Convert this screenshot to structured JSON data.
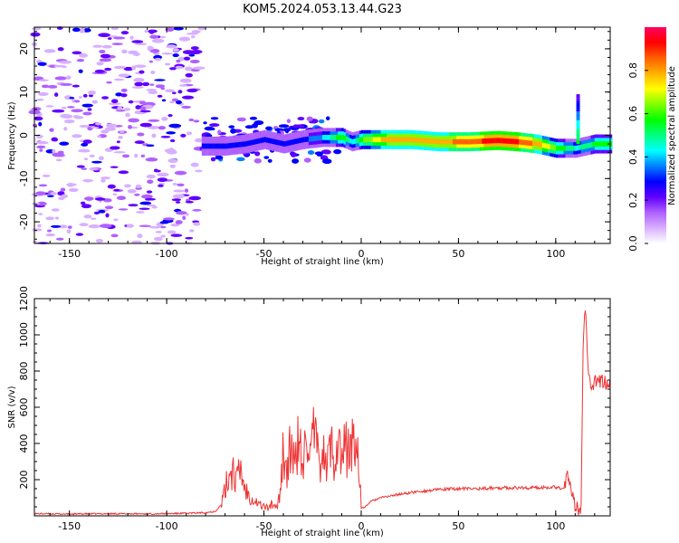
{
  "title": "KOM5.2024.053.13.44.G23",
  "chart_data": [
    {
      "type": "heatmap",
      "xlabel": "Height of straight line (km)",
      "ylabel": "Frequency (Hz)",
      "xlim": [
        -168,
        128
      ],
      "ylim": [
        -25,
        25
      ],
      "x_ticks": [
        -150,
        -100,
        -50,
        0,
        50,
        100
      ],
      "y_ticks": [
        -20,
        -10,
        0,
        10,
        20
      ],
      "grid": false,
      "colorbar": {
        "label": "Normalized spectral amplitude",
        "range": [
          0,
          1
        ],
        "ticks": [
          "0.0",
          "0.2",
          "0.4",
          "0.6",
          "0.8"
        ],
        "colors": [
          "#ffffff",
          "#d8b0ff",
          "#b060ff",
          "#6000ff",
          "#0000ff",
          "#0080ff",
          "#00ffff",
          "#00ff80",
          "#00ff00",
          "#80ff00",
          "#ffff00",
          "#ffb000",
          "#ff6000",
          "#ff0000",
          "#ff0060"
        ]
      },
      "trace": {
        "x": [
          -82,
          -70,
          -60,
          -50,
          -40,
          -30,
          -20,
          -10,
          -5,
          0,
          10,
          25,
          40,
          55,
          70,
          80,
          90,
          100,
          110,
          120,
          128
        ],
        "freq": [
          -2.5,
          -2.5,
          -2.0,
          -1.0,
          -2.0,
          -1.0,
          -0.5,
          -0.5,
          -1.5,
          -1.0,
          -1.0,
          -1.0,
          -1.5,
          -1.5,
          -1.2,
          -1.5,
          -2.0,
          -3.0,
          -3.0,
          -2.0,
          -2.0
        ],
        "amplitude": [
          0.25,
          0.3,
          0.3,
          0.25,
          0.3,
          0.3,
          0.4,
          0.6,
          0.4,
          0.6,
          0.75,
          0.8,
          0.8,
          0.85,
          0.95,
          0.9,
          0.8,
          0.6,
          0.45,
          0.55,
          0.55
        ]
      }
    },
    {
      "type": "line",
      "xlabel": "Height of straight line (km)",
      "ylabel": "SNR (v/v)",
      "xlim": [
        -168,
        128
      ],
      "ylim": [
        0,
        1200
      ],
      "x_ticks": [
        -150,
        -100,
        -50,
        0,
        50,
        100
      ],
      "y_ticks": [
        200,
        400,
        600,
        800,
        1000,
        1200
      ],
      "grid": false,
      "series": [
        {
          "color": "#ee3333",
          "x": [
            -168,
            -150,
            -130,
            -110,
            -90,
            -80,
            -75,
            -72,
            -70,
            -68,
            -66,
            -64,
            -62,
            -60,
            -58,
            -55,
            -52,
            -50,
            -48,
            -46,
            -44,
            -42,
            -40,
            -38,
            -36,
            -34,
            -32,
            -30,
            -28,
            -26,
            -24,
            -22,
            -20,
            -18,
            -16,
            -14,
            -12,
            -10,
            -8,
            -6,
            -4,
            -2,
            -1,
            0,
            1,
            3,
            5,
            10,
            20,
            30,
            40,
            50,
            60,
            70,
            80,
            90,
            100,
            104,
            106,
            108,
            110,
            112,
            113,
            114,
            115,
            116,
            117,
            118,
            120,
            125,
            128
          ],
          "y": [
            12,
            10,
            12,
            11,
            14,
            18,
            25,
            60,
            140,
            230,
            260,
            190,
            260,
            160,
            120,
            90,
            60,
            55,
            40,
            70,
            35,
            110,
            380,
            220,
            420,
            250,
            460,
            200,
            530,
            300,
            480,
            280,
            380,
            250,
            390,
            330,
            440,
            300,
            390,
            340,
            420,
            370,
            300,
            50,
            40,
            60,
            80,
            100,
            120,
            135,
            145,
            150,
            150,
            155,
            155,
            155,
            160,
            150,
            230,
            120,
            60,
            30,
            25,
            900,
            1200,
            1000,
            760,
            740,
            735,
            740,
            740
          ]
        }
      ]
    }
  ]
}
